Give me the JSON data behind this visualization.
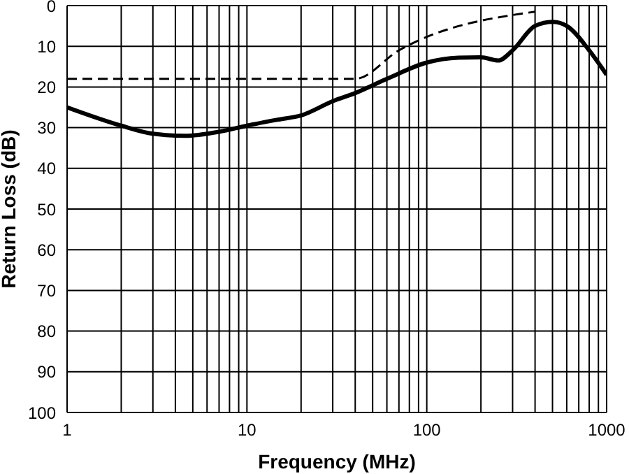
{
  "chart_data": {
    "type": "line",
    "xlabel": "Frequency (MHz)",
    "ylabel": "Return Loss (dB)",
    "log": "x",
    "xlim": [
      1,
      1000
    ],
    "xticks": [
      1,
      {
        "value": 2,
        "label": null
      },
      {
        "value": 3,
        "label": null
      },
      {
        "value": 4,
        "label": null
      },
      {
        "value": 5,
        "label": null
      },
      {
        "value": 6,
        "label": null
      },
      {
        "value": 7,
        "label": null
      },
      {
        "value": 8,
        "label": null
      },
      {
        "value": 9,
        "label": null
      },
      10,
      {
        "value": 20,
        "label": null
      },
      {
        "value": 30,
        "label": null
      },
      {
        "value": 40,
        "label": null
      },
      {
        "value": 50,
        "label": null
      },
      {
        "value": 60,
        "label": null
      },
      {
        "value": 70,
        "label": null
      },
      {
        "value": 80,
        "label": null
      },
      {
        "value": 90,
        "label": null
      },
      100,
      {
        "value": 200,
        "label": null
      },
      {
        "value": 300,
        "label": null
      },
      {
        "value": 400,
        "label": null
      },
      {
        "value": 500,
        "label": null
      },
      {
        "value": 600,
        "label": null
      },
      {
        "value": 700,
        "label": null
      },
      {
        "value": 800,
        "label": null
      },
      {
        "value": 900,
        "label": null
      },
      1000
    ],
    "ylim": [
      100,
      0
    ],
    "yticks": [
      0,
      10,
      20,
      30,
      40,
      50,
      60,
      70,
      80,
      90,
      100
    ],
    "grid": true,
    "marker": "none",
    "series": [
      {
        "color": "#000000",
        "line_style": "solid",
        "x": [
          1,
          2,
          3,
          4.5,
          7,
          10,
          15,
          20,
          30,
          40,
          60,
          100,
          150,
          200,
          250,
          300,
          400,
          500,
          600,
          800,
          1000
        ],
        "values": [
          25,
          29.5,
          31.5,
          32,
          31,
          29.5,
          28,
          27,
          23.5,
          21.5,
          18,
          14,
          12.8,
          12.7,
          13.5,
          11,
          5,
          4,
          5,
          11,
          17
        ]
      },
      {
        "color": "#000000",
        "line_style": "dashed",
        "x": [
          1,
          40,
          70,
          400
        ],
        "values": [
          18,
          18,
          11,
          1.5
        ]
      }
    ]
  }
}
